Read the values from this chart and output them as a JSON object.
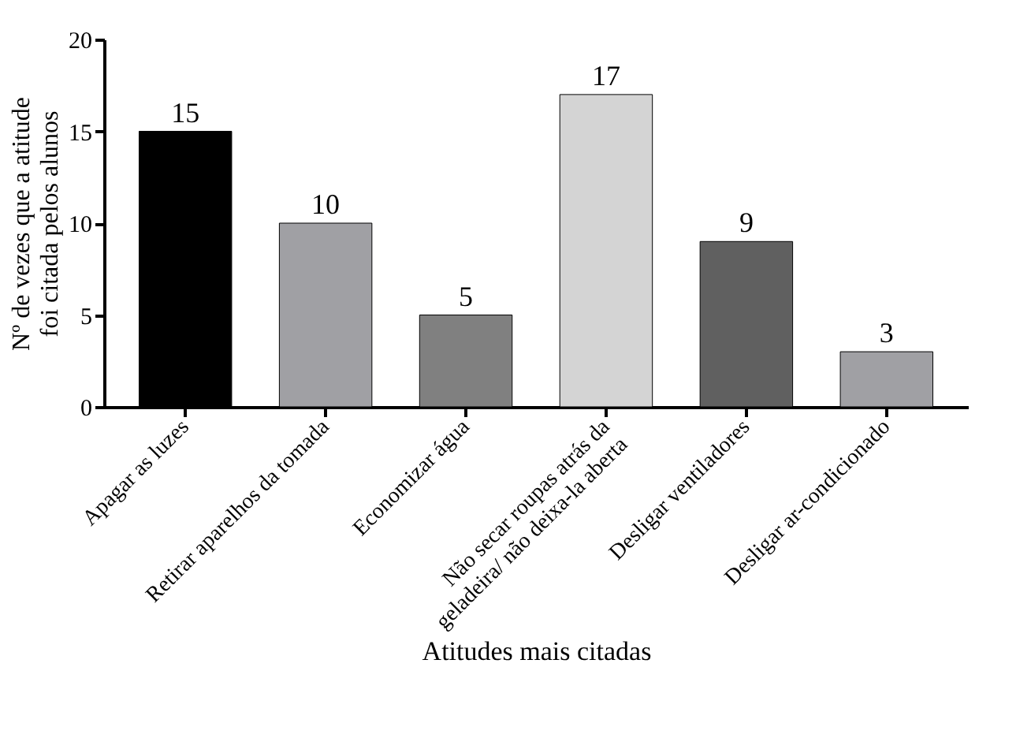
{
  "chart_data": {
    "type": "bar",
    "categories": [
      "Apagar as luzes",
      "Retirar aparelhos da tomada",
      "Economizar água",
      "Não secar  roupas atrás da\ngeladeira/ não deixa-la aberta",
      "Desligar ventiladores",
      "Desligar ar-condicionado"
    ],
    "values": [
      15,
      10,
      5,
      17,
      9,
      3
    ],
    "colors": [
      "#000000",
      "#a0a0a4",
      "#808080",
      "#d4d4d4",
      "#606060",
      "#a0a0a4"
    ],
    "xlabel": "Atitudes mais citadas",
    "ylabel": "Nº de vezes que a atitude\nfoi citada pelos alunos",
    "ylim": [
      0,
      20
    ],
    "yticks": [
      0,
      5,
      10,
      15,
      20
    ],
    "grid": false,
    "data_labels": true
  }
}
